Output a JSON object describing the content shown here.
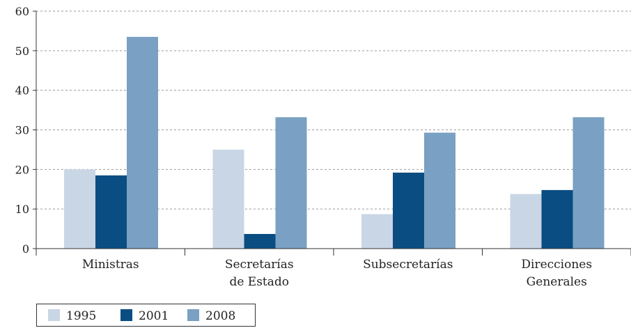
{
  "chart_data": {
    "type": "bar",
    "title": "",
    "xlabel": "",
    "ylabel": "",
    "ylim": [
      0,
      60
    ],
    "yticks": [
      0,
      10,
      20,
      30,
      40,
      50,
      60
    ],
    "grid": true,
    "legend_position": "bottom-left",
    "categories": [
      [
        "Ministras"
      ],
      [
        "Secretarías",
        "de Estado"
      ],
      [
        "Subsecretarías"
      ],
      [
        "Direcciones",
        "Generales"
      ]
    ],
    "series": [
      {
        "name": "1995",
        "color": "#c9d6e5",
        "values": [
          20,
          25,
          8.7,
          13.8
        ]
      },
      {
        "name": "2001",
        "color": "#0a4d82",
        "values": [
          18.5,
          3.7,
          19.2,
          14.8
        ]
      },
      {
        "name": "2008",
        "color": "#7aa0c3",
        "values": [
          53.5,
          33.2,
          29.3,
          33.2
        ]
      }
    ]
  }
}
